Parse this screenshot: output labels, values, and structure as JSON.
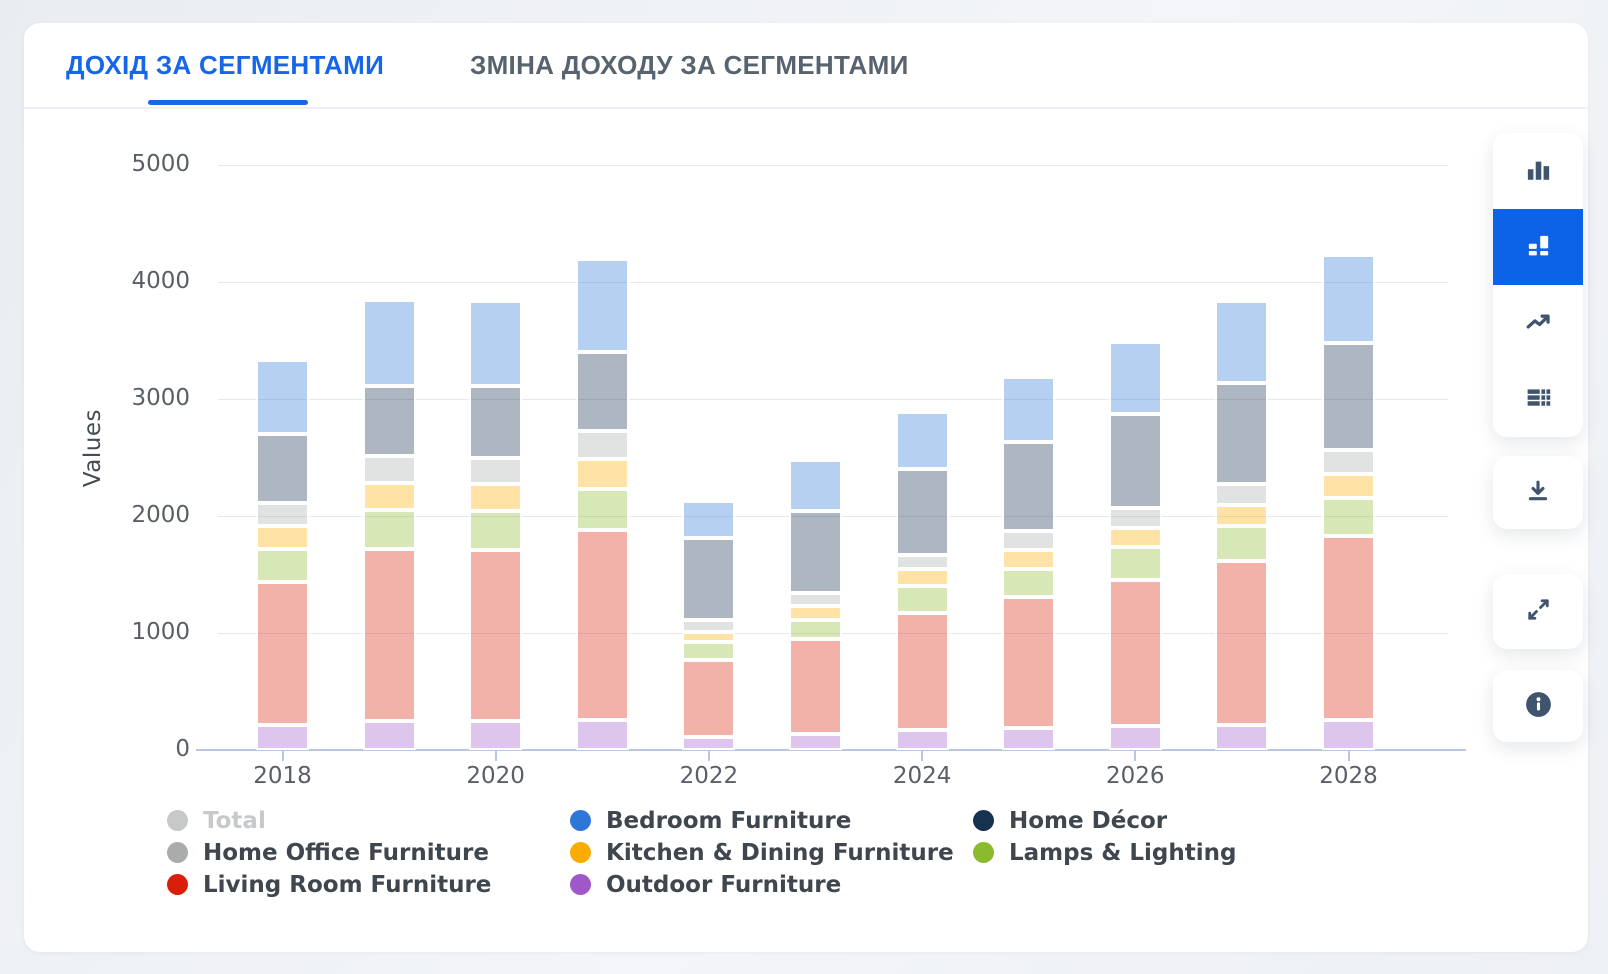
{
  "tabs": [
    {
      "label": "ДОХІД ЗА СЕГМЕНТАМИ",
      "active": true
    },
    {
      "label": "ЗМІНА ДОХОДУ ЗА СЕГМЕНТАМИ",
      "active": false
    }
  ],
  "chart_data": {
    "type": "bar",
    "stacked": true,
    "title": "",
    "xlabel": "",
    "ylabel": "Values",
    "ylim": [
      0,
      5000
    ],
    "yticks": [
      0,
      1000,
      2000,
      3000,
      4000,
      5000
    ],
    "grid": true,
    "legend_position": "bottom",
    "categories": [
      2018,
      2019,
      2020,
      2021,
      2022,
      2023,
      2024,
      2025,
      2026,
      2027,
      2028
    ],
    "x_labeled_ticks": [
      2018,
      2020,
      2022,
      2024,
      2026,
      2028
    ],
    "series": [
      {
        "name": "Outdoor Furniture",
        "color": "#9e58c8",
        "bar_color": "rgba(158,88,200,0.35)",
        "values": [
          210,
          250,
          250,
          260,
          110,
          135,
          175,
          190,
          205,
          215,
          255
        ]
      },
      {
        "name": "Living Room Furniture",
        "color": "#d91f0a",
        "bar_color": "rgba(217,31,10,0.35)",
        "values": [
          1230,
          1470,
          1460,
          1620,
          660,
          810,
          1000,
          1120,
          1250,
          1400,
          1570
        ]
      },
      {
        "name": "Lamps & Lighting",
        "color": "#8cba2e",
        "bar_color": "rgba(140,186,46,0.35)",
        "values": [
          280,
          330,
          330,
          350,
          155,
          165,
          230,
          240,
          280,
          300,
          330
        ]
      },
      {
        "name": "Kitchen & Dining Furniture",
        "color": "#fcab00",
        "bar_color": "rgba(252,171,0,0.35)",
        "values": [
          195,
          235,
          230,
          260,
          85,
          125,
          145,
          160,
          165,
          175,
          200
        ]
      },
      {
        "name": "Home Office Furniture",
        "color": "#a9abad",
        "bar_color": "rgba(169,171,173,0.35)",
        "values": [
          195,
          230,
          230,
          240,
          100,
          105,
          120,
          160,
          165,
          185,
          205
        ]
      },
      {
        "name": "Home Décor",
        "color": "#17324e",
        "bar_color": "rgba(23,50,78,0.35)",
        "values": [
          590,
          600,
          610,
          670,
          700,
          700,
          730,
          760,
          810,
          860,
          920
        ]
      },
      {
        "name": "Bedroom Furniture",
        "color": "#2e77d8",
        "bar_color": "rgba(46,119,216,0.35)",
        "values": [
          630,
          735,
          730,
          800,
          320,
          440,
          490,
          560,
          610,
          705,
          750
        ]
      }
    ]
  },
  "legend": {
    "items": [
      {
        "label": "Total",
        "color": "#c7c8ca",
        "disabled": true
      },
      {
        "label": "Bedroom Furniture",
        "color": "#2e77d8",
        "disabled": false
      },
      {
        "label": "Home Décor",
        "color": "#17324e",
        "disabled": false
      },
      {
        "label": "Home Office Furniture",
        "color": "#a9abad",
        "disabled": false
      },
      {
        "label": "Kitchen & Dining Furniture",
        "color": "#fcab00",
        "disabled": false
      },
      {
        "label": "Lamps & Lighting",
        "color": "#8cba2e",
        "disabled": false
      },
      {
        "label": "Living Room Furniture",
        "color": "#d91f0a",
        "disabled": false
      },
      {
        "label": "Outdoor Furniture",
        "color": "#9e58c8",
        "disabled": false
      }
    ]
  },
  "toolbar": {
    "buttons": [
      {
        "name": "bar-chart",
        "selected": false
      },
      {
        "name": "stacked-bar-chart",
        "selected": true
      },
      {
        "name": "line-chart",
        "selected": false
      },
      {
        "name": "data-table",
        "selected": false
      }
    ],
    "actions": [
      {
        "name": "download"
      },
      {
        "name": "expand"
      },
      {
        "name": "info"
      }
    ]
  },
  "colors": {
    "accent": "#1766e8",
    "selected_tool_bg": "#0c63e7",
    "icon": "#3f556e",
    "axis_line": "#bac7e1",
    "grid_line": "#e5e8ec"
  }
}
